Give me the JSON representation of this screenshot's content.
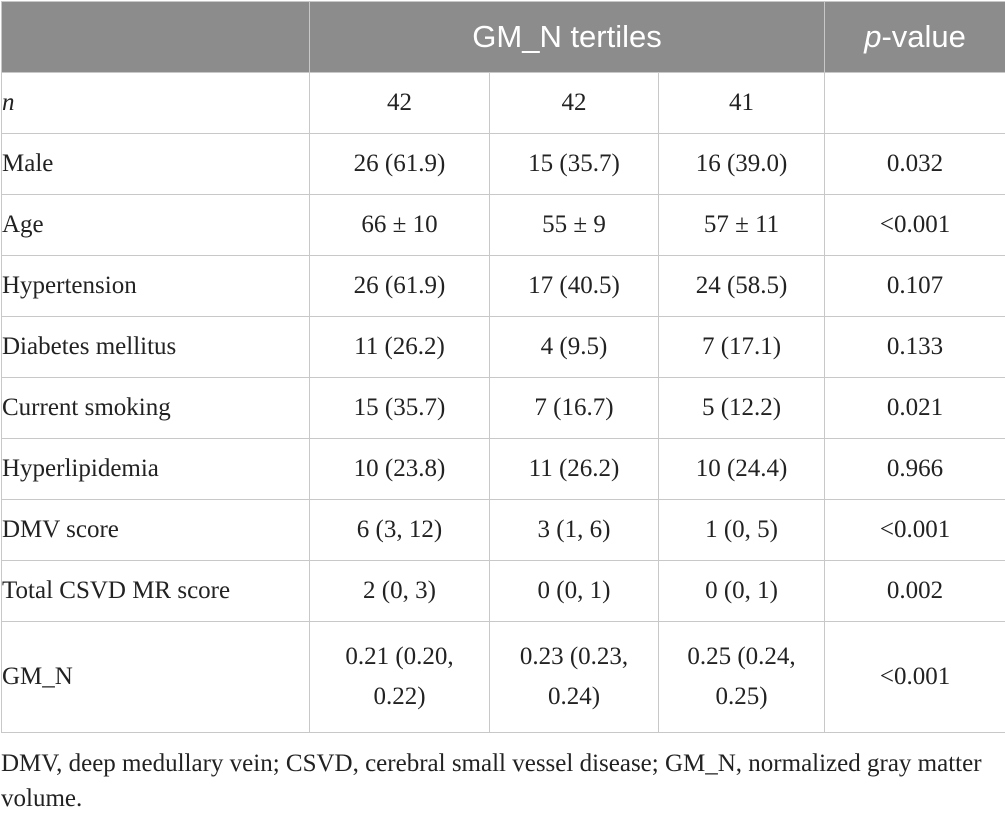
{
  "table": {
    "header": {
      "group_label": "GM_N tertiles",
      "pvalue_italic": "p",
      "pvalue_rest": "-value"
    },
    "rows": [
      {
        "label": "n",
        "italic": true,
        "t1": "42",
        "t2": "42",
        "t3": "41",
        "p": ""
      },
      {
        "label": "Male",
        "t1": "26 (61.9)",
        "t2": "15 (35.7)",
        "t3": "16 (39.0)",
        "p": "0.032"
      },
      {
        "label": "Age",
        "t1": "66 ± 10",
        "t2": "55 ± 9",
        "t3": "57 ± 11",
        "p": "<0.001"
      },
      {
        "label": "Hypertension",
        "t1": "26 (61.9)",
        "t2": "17 (40.5)",
        "t3": "24 (58.5)",
        "p": "0.107"
      },
      {
        "label": "Diabetes mellitus",
        "t1": "11 (26.2)",
        "t2": "4 (9.5)",
        "t3": "7 (17.1)",
        "p": "0.133"
      },
      {
        "label": "Current smoking",
        "t1": "15 (35.7)",
        "t2": "7 (16.7)",
        "t3": "5 (12.2)",
        "p": "0.021"
      },
      {
        "label": "Hyperlipidemia",
        "t1": "10 (23.8)",
        "t2": "11 (26.2)",
        "t3": "10 (24.4)",
        "p": "0.966"
      },
      {
        "label": "DMV score",
        "t1": "6 (3, 12)",
        "t2": "3 (1, 6)",
        "t3": "1 (0, 5)",
        "p": "<0.001"
      },
      {
        "label": "Total CSVD MR score",
        "t1": "2 (0, 3)",
        "t2": "0 (0, 1)",
        "t3": "0 (0, 1)",
        "p": "0.002"
      },
      {
        "label": "GM_N",
        "t1a": "0.21 (0.20,",
        "t1b": "0.22)",
        "t2a": "0.23 (0.23,",
        "t2b": "0.24)",
        "t3a": "0.25 (0.24,",
        "t3b": "0.25)",
        "p": "<0.001"
      }
    ]
  },
  "footnote": "DMV, deep medullary vein; CSVD, cerebral small vessel disease; GM_N, normalized gray matter volume."
}
